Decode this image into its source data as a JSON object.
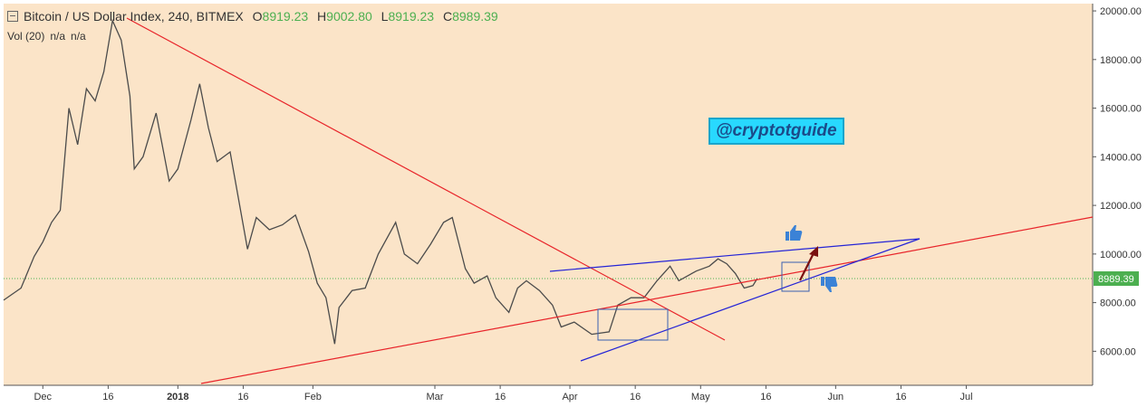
{
  "legend": {
    "symbol": "Bitcoin / US Dollar Index, 240, BITMEX",
    "o_key": "O",
    "o_val": "8919.23",
    "h_key": "H",
    "h_val": "9002.80",
    "l_key": "L",
    "l_val": "8919.23",
    "c_key": "C",
    "c_val": "8989.39"
  },
  "volume": {
    "label": "Vol (20)",
    "v1": "n/a",
    "v2": "n/a"
  },
  "watermark": "@cryptotguide",
  "colors": {
    "background": "#fbe4c8",
    "price_line": "#4b4b4b",
    "red_line": "#e8242a",
    "blue_line": "#2424d6",
    "last_price": "#4caf50",
    "arrow": "#7a1010",
    "thumb": "#3b82d6"
  },
  "chart_data": {
    "type": "line",
    "timeframe": "240",
    "xlim": [
      "2017-11-22",
      "2018-07-30"
    ],
    "ylim": [
      4600,
      20300
    ],
    "y_ticks": [
      6000,
      8000,
      10000,
      12000,
      14000,
      16000,
      18000,
      20000
    ],
    "y_tick_labels": [
      "6000.00",
      "8000.00",
      "10000.00",
      "12000.00",
      "14000.00",
      "16000.00",
      "18000.00",
      "20000.00"
    ],
    "x_ticks": [
      {
        "date": "2017-12-01",
        "label": "Dec"
      },
      {
        "date": "2017-12-16",
        "label": "16"
      },
      {
        "date": "2018-01-01",
        "label": "2018"
      },
      {
        "date": "2018-01-16",
        "label": "16"
      },
      {
        "date": "2018-02-01",
        "label": "Feb"
      },
      {
        "date": "2018-03-01",
        "label": "Mar"
      },
      {
        "date": "2018-03-16",
        "label": "16"
      },
      {
        "date": "2018-04-01",
        "label": "Apr"
      },
      {
        "date": "2018-04-16",
        "label": "16"
      },
      {
        "date": "2018-05-01",
        "label": "May"
      },
      {
        "date": "2018-05-16",
        "label": "16"
      },
      {
        "date": "2018-06-01",
        "label": "Jun"
      },
      {
        "date": "2018-06-16",
        "label": "16"
      },
      {
        "date": "2018-07-01",
        "label": "Jul"
      }
    ],
    "last_price": 8989.39,
    "last_price_label": "8989.39",
    "series": [
      {
        "points": [
          [
            "2017-11-22",
            8100
          ],
          [
            "2017-11-26",
            8600
          ],
          [
            "2017-11-29",
            9900
          ],
          [
            "2017-12-01",
            10500
          ],
          [
            "2017-12-03",
            11300
          ],
          [
            "2017-12-05",
            11800
          ],
          [
            "2017-12-07",
            16000
          ],
          [
            "2017-12-09",
            14500
          ],
          [
            "2017-12-11",
            16800
          ],
          [
            "2017-12-13",
            16300
          ],
          [
            "2017-12-15",
            17500
          ],
          [
            "2017-12-17",
            19600
          ],
          [
            "2017-12-19",
            18800
          ],
          [
            "2017-12-21",
            16500
          ],
          [
            "2017-12-22",
            13500
          ],
          [
            "2017-12-24",
            14000
          ],
          [
            "2017-12-27",
            15800
          ],
          [
            "2017-12-30",
            13000
          ],
          [
            "2018-01-01",
            13500
          ],
          [
            "2018-01-04",
            15500
          ],
          [
            "2018-01-06",
            17000
          ],
          [
            "2018-01-08",
            15200
          ],
          [
            "2018-01-10",
            13800
          ],
          [
            "2018-01-13",
            14200
          ],
          [
            "2018-01-16",
            11200
          ],
          [
            "2018-01-17",
            10200
          ],
          [
            "2018-01-19",
            11500
          ],
          [
            "2018-01-22",
            11000
          ],
          [
            "2018-01-25",
            11200
          ],
          [
            "2018-01-28",
            11600
          ],
          [
            "2018-01-31",
            10100
          ],
          [
            "2018-02-02",
            8800
          ],
          [
            "2018-02-04",
            8200
          ],
          [
            "2018-02-06",
            6300
          ],
          [
            "2018-02-07",
            7800
          ],
          [
            "2018-02-10",
            8500
          ],
          [
            "2018-02-13",
            8600
          ],
          [
            "2018-02-16",
            10000
          ],
          [
            "2018-02-20",
            11300
          ],
          [
            "2018-02-22",
            10000
          ],
          [
            "2018-02-25",
            9600
          ],
          [
            "2018-02-28",
            10400
          ],
          [
            "2018-03-03",
            11300
          ],
          [
            "2018-03-05",
            11500
          ],
          [
            "2018-03-08",
            9400
          ],
          [
            "2018-03-10",
            8800
          ],
          [
            "2018-03-13",
            9100
          ],
          [
            "2018-03-15",
            8200
          ],
          [
            "2018-03-18",
            7600
          ],
          [
            "2018-03-20",
            8600
          ],
          [
            "2018-03-22",
            8900
          ],
          [
            "2018-03-25",
            8500
          ],
          [
            "2018-03-28",
            7900
          ],
          [
            "2018-03-30",
            7000
          ],
          [
            "2018-04-02",
            7200
          ],
          [
            "2018-04-06",
            6700
          ],
          [
            "2018-04-10",
            6800
          ],
          [
            "2018-04-12",
            7900
          ],
          [
            "2018-04-15",
            8200
          ],
          [
            "2018-04-18",
            8200
          ],
          [
            "2018-04-21",
            8900
          ],
          [
            "2018-04-24",
            9500
          ],
          [
            "2018-04-26",
            8900
          ],
          [
            "2018-04-30",
            9300
          ],
          [
            "2018-05-03",
            9500
          ],
          [
            "2018-05-05",
            9800
          ],
          [
            "2018-05-07",
            9600
          ],
          [
            "2018-05-09",
            9200
          ],
          [
            "2018-05-11",
            8600
          ],
          [
            "2018-05-13",
            8700
          ],
          [
            "2018-05-14",
            8989.39
          ]
        ]
      }
    ]
  }
}
